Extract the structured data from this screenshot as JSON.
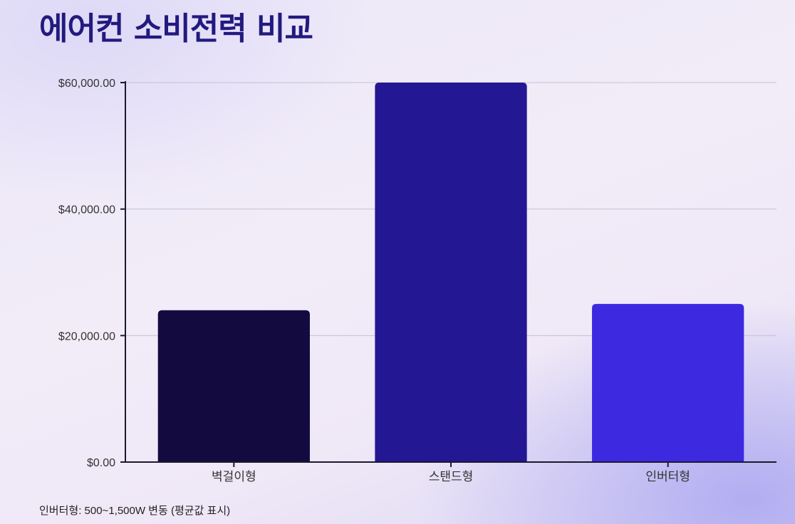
{
  "chart_data": {
    "type": "bar",
    "title": "에어컨 소비전력 비교",
    "categories": [
      "벽걸이형",
      "스탠드형",
      "인버터형"
    ],
    "values": [
      24000,
      60000,
      25000
    ],
    "colors": [
      "#130b40",
      "#231794",
      "#3d2ae0"
    ],
    "ylim": [
      0,
      60000
    ],
    "yticks": [
      0,
      20000,
      40000,
      60000
    ],
    "ytick_labels": [
      "$0.00",
      "$20,000.00",
      "$40,000.00",
      "$60,000.00"
    ],
    "grid": true,
    "xlabel": "",
    "ylabel": ""
  },
  "footnote": "인버터형: 500~1,500W 변동 (평균값 표시)"
}
